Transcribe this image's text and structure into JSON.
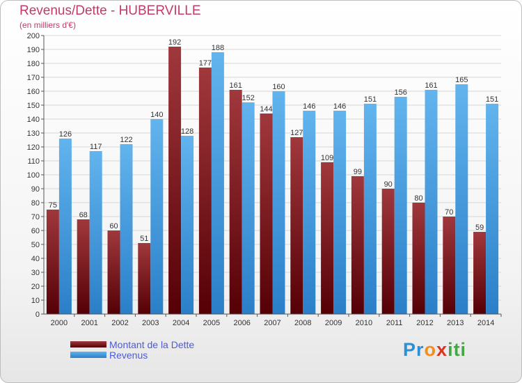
{
  "chart_data": {
    "type": "bar",
    "title": "Revenus/Dette - HUBERVILLE",
    "subtitle": "(en milliers d'€)",
    "categories": [
      "2000",
      "2001",
      "2002",
      "2003",
      "2004",
      "2005",
      "2006",
      "2007",
      "2008",
      "2009",
      "2010",
      "2011",
      "2012",
      "2013",
      "2014"
    ],
    "series": [
      {
        "name": "Montant de la Dette",
        "values": [
          75,
          68,
          60,
          51,
          192,
          177,
          161,
          144,
          127,
          109,
          99,
          90,
          80,
          70,
          59
        ],
        "color": "#6a0d10"
      },
      {
        "name": "Revenus",
        "values": [
          126,
          117,
          122,
          140,
          128,
          188,
          152,
          160,
          146,
          146,
          151,
          156,
          161,
          165,
          151
        ],
        "color": "#3fa0e6"
      }
    ],
    "ylim": [
      0,
      200
    ],
    "ytick_step": 10,
    "grid": true,
    "legend_position": "bottom-left"
  },
  "logo": {
    "text": "Proxiti",
    "parts": [
      "Pr",
      "o",
      "x",
      "iti"
    ]
  }
}
